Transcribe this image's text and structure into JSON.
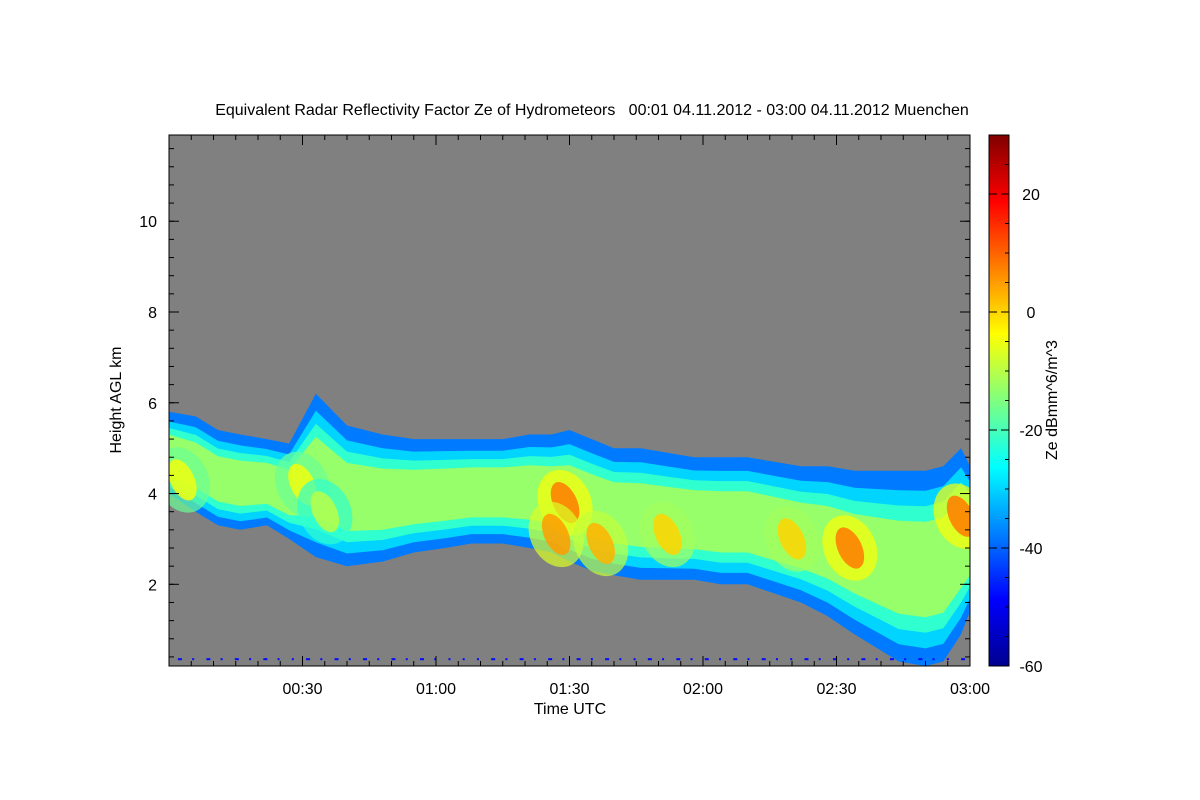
{
  "chart_data": {
    "type": "heatmap",
    "title": "Equivalent Radar Reflectivity Factor Ze of Hydrometeors   00:01 04.11.2012 - 03:00 04.11.2012 Muenchen",
    "xlabel": "Time UTC",
    "ylabel": "Height AGL km",
    "x_unit": "minutes after 00:00 UTC",
    "xlim": [
      0,
      180
    ],
    "ylim": [
      0.2,
      11.9
    ],
    "x_ticks": [
      {
        "value": 30,
        "label": "00:30"
      },
      {
        "value": 60,
        "label": "01:00"
      },
      {
        "value": 90,
        "label": "01:30"
      },
      {
        "value": 120,
        "label": "02:00"
      },
      {
        "value": 150,
        "label": "02:30"
      },
      {
        "value": 180,
        "label": "03:00"
      }
    ],
    "y_ticks": [
      {
        "value": 2,
        "label": "2"
      },
      {
        "value": 4,
        "label": "4"
      },
      {
        "value": 6,
        "label": "6"
      },
      {
        "value": 8,
        "label": "8"
      },
      {
        "value": 10,
        "label": "10"
      }
    ],
    "colorbar": {
      "label": "Ze dBmm^6/m^3",
      "range": [
        -60,
        30
      ],
      "ticks": [
        {
          "value": -60,
          "label": "-60"
        },
        {
          "value": -40,
          "label": "-40"
        },
        {
          "value": -20,
          "label": "-20"
        },
        {
          "value": 0,
          "label": "0"
        },
        {
          "value": 20,
          "label": "20"
        }
      ],
      "colormap": "jet"
    },
    "background_color": "#808080",
    "echo_regions": [
      {
        "x": [
          0,
          6,
          11,
          16,
          22,
          27,
          33,
          40,
          48,
          55,
          62,
          68,
          75,
          81,
          86,
          90,
          95,
          100,
          106,
          112,
          118,
          124,
          130,
          136,
          142,
          148,
          154,
          159,
          164,
          170,
          174,
          178,
          180
        ],
        "top": [
          5.8,
          5.7,
          5.4,
          5.3,
          5.2,
          5.1,
          6.2,
          5.5,
          5.3,
          5.2,
          5.2,
          5.2,
          5.2,
          5.3,
          5.3,
          5.4,
          5.2,
          5.0,
          5.0,
          4.9,
          4.8,
          4.8,
          4.8,
          4.7,
          4.6,
          4.6,
          4.5,
          4.5,
          4.5,
          4.5,
          4.6,
          5.0,
          4.6
        ],
        "bottom": [
          4.0,
          3.6,
          3.3,
          3.2,
          3.3,
          3.0,
          2.6,
          2.4,
          2.5,
          2.7,
          2.8,
          2.9,
          2.9,
          2.8,
          2.7,
          2.5,
          2.3,
          2.2,
          2.1,
          2.1,
          2.1,
          2.0,
          2.0,
          1.8,
          1.6,
          1.3,
          0.9,
          0.6,
          0.3,
          0.2,
          0.3,
          0.9,
          1.4
        ]
      }
    ],
    "high_reflectivity_cores": [
      {
        "x": 3,
        "y": 4.3,
        "ze": -5
      },
      {
        "x": 30,
        "y": 4.2,
        "ze": -5
      },
      {
        "x": 35,
        "y": 3.6,
        "ze": -10
      },
      {
        "x": 89,
        "y": 3.8,
        "ze": 8
      },
      {
        "x": 87,
        "y": 3.1,
        "ze": 5
      },
      {
        "x": 97,
        "y": 2.9,
        "ze": 3
      },
      {
        "x": 112,
        "y": 3.1,
        "ze": 0
      },
      {
        "x": 140,
        "y": 3.0,
        "ze": 0
      },
      {
        "x": 153,
        "y": 2.8,
        "ze": 8
      },
      {
        "x": 178,
        "y": 3.5,
        "ze": 8
      }
    ]
  }
}
